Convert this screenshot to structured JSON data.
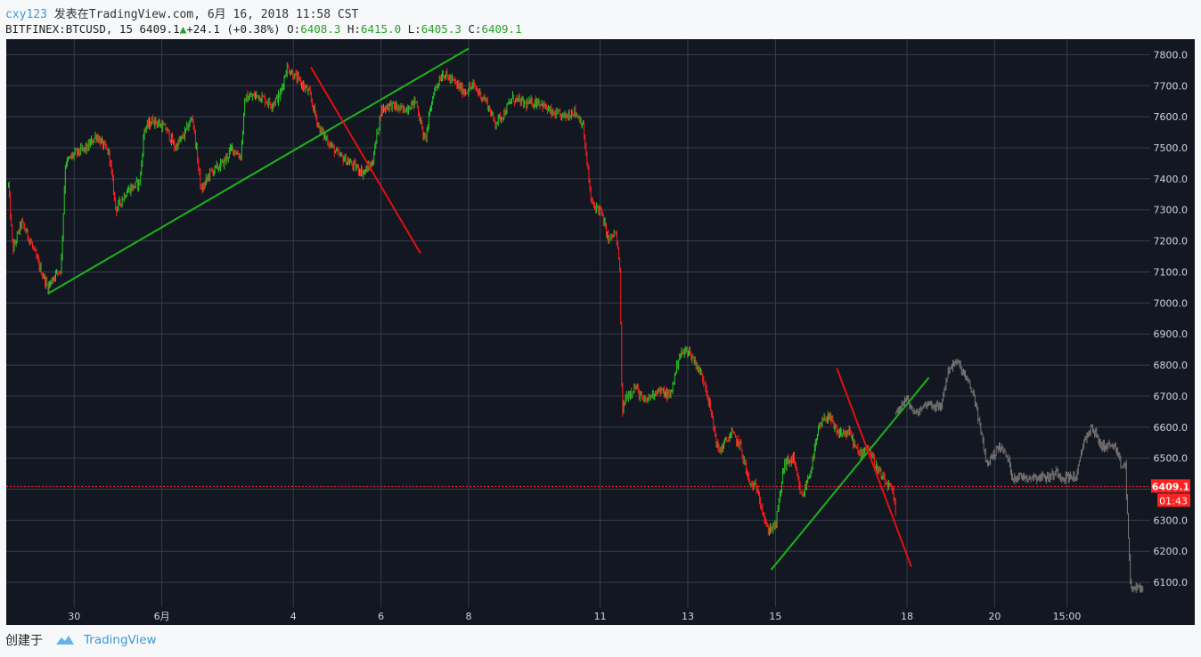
{
  "header": {
    "author": "cxy123",
    "published_on": "发表在TradingView.com, 6月 16, 2018 11:58 CST",
    "symbol": "BITFINEX:BTCUSD, 15",
    "last": "6409.1",
    "change": "+24.1",
    "change_pct": "(+0.38%)",
    "o_label": "O:",
    "o_value": "6408.3",
    "h_label": "H:",
    "h_value": "6415.0",
    "l_label": "L:",
    "l_value": "6405.3",
    "c_label": "C:",
    "c_value": "6409.1"
  },
  "footer": {
    "created_with": "创建于",
    "brand": "TradingView"
  },
  "colors": {
    "background": "#131722",
    "grid": "#363c4e",
    "up_candle": "#26c926",
    "down_candle": "#ff2020",
    "projection": "#8a8580",
    "trend_green": "#1db31d",
    "trend_red": "#e01010",
    "price_line": "#ff2020"
  },
  "chart_data": {
    "type": "candlestick",
    "y_ticks": [
      "7800.0",
      "7700.0",
      "7600.0",
      "7500.0",
      "7400.0",
      "7300.0",
      "7200.0",
      "7100.0",
      "7000.0",
      "6900.0",
      "6800.0",
      "6700.0",
      "6600.0",
      "6500.0",
      "6400.0",
      "6300.0",
      "6200.0",
      "6100.0"
    ],
    "x_ticks": [
      {
        "label": "30",
        "day": 0
      },
      {
        "label": "6月",
        "day": 2
      },
      {
        "label": "4",
        "day": 5
      },
      {
        "label": "6",
        "day": 7
      },
      {
        "label": "8",
        "day": 9
      },
      {
        "label": "11",
        "day": 12
      },
      {
        "label": "13",
        "day": 14
      },
      {
        "label": "15",
        "day": 16
      },
      {
        "label": "18",
        "day": 19
      },
      {
        "label": "20",
        "day": 21
      },
      {
        "label": "15:00",
        "day": 22.65
      }
    ],
    "ylim": [
      6020,
      7850
    ],
    "xlim": [
      -1.55,
      24.55
    ],
    "price_marker": "6409.1",
    "countdown": "01:43",
    "price_path": [
      [
        -1.5,
        7380
      ],
      [
        -1.4,
        7170
      ],
      [
        -1.2,
        7260
      ],
      [
        -1.0,
        7200
      ],
      [
        -0.8,
        7120
      ],
      [
        -0.6,
        7050
      ],
      [
        -0.45,
        7090
      ],
      [
        -0.3,
        7110
      ],
      [
        -0.2,
        7450
      ],
      [
        0.0,
        7480
      ],
      [
        0.3,
        7500
      ],
      [
        0.5,
        7540
      ],
      [
        0.8,
        7480
      ],
      [
        0.95,
        7300
      ],
      [
        1.2,
        7360
      ],
      [
        1.5,
        7390
      ],
      [
        1.6,
        7560
      ],
      [
        1.8,
        7590
      ],
      [
        2.1,
        7560
      ],
      [
        2.3,
        7500
      ],
      [
        2.5,
        7540
      ],
      [
        2.7,
        7600
      ],
      [
        2.9,
        7360
      ],
      [
        3.1,
        7420
      ],
      [
        3.4,
        7450
      ],
      [
        3.6,
        7500
      ],
      [
        3.8,
        7470
      ],
      [
        3.9,
        7660
      ],
      [
        4.2,
        7670
      ],
      [
        4.5,
        7640
      ],
      [
        4.7,
        7670
      ],
      [
        4.85,
        7760
      ],
      [
        5.1,
        7720
      ],
      [
        5.35,
        7680
      ],
      [
        5.6,
        7560
      ],
      [
        5.8,
        7520
      ],
      [
        6.0,
        7480
      ],
      [
        6.3,
        7450
      ],
      [
        6.6,
        7420
      ],
      [
        6.8,
        7450
      ],
      [
        7.0,
        7620
      ],
      [
        7.2,
        7640
      ],
      [
        7.5,
        7620
      ],
      [
        7.8,
        7650
      ],
      [
        8.0,
        7520
      ],
      [
        8.2,
        7680
      ],
      [
        8.4,
        7740
      ],
      [
        8.6,
        7720
      ],
      [
        8.9,
        7680
      ],
      [
        9.1,
        7700
      ],
      [
        9.4,
        7650
      ],
      [
        9.6,
        7580
      ],
      [
        9.8,
        7610
      ],
      [
        10.0,
        7660
      ],
      [
        10.3,
        7640
      ],
      [
        10.6,
        7650
      ],
      [
        10.9,
        7610
      ],
      [
        11.2,
        7600
      ],
      [
        11.4,
        7620
      ],
      [
        11.6,
        7580
      ],
      [
        11.8,
        7320
      ],
      [
        12.0,
        7300
      ],
      [
        12.2,
        7200
      ],
      [
        12.35,
        7230
      ],
      [
        12.45,
        7110
      ],
      [
        12.5,
        6650
      ],
      [
        12.6,
        6700
      ],
      [
        12.8,
        6730
      ],
      [
        13.0,
        6680
      ],
      [
        13.3,
        6720
      ],
      [
        13.6,
        6700
      ],
      [
        13.8,
        6830
      ],
      [
        14.0,
        6850
      ],
      [
        14.2,
        6800
      ],
      [
        14.4,
        6740
      ],
      [
        14.7,
        6520
      ],
      [
        15.0,
        6580
      ],
      [
        15.2,
        6540
      ],
      [
        15.4,
        6420
      ],
      [
        15.6,
        6400
      ],
      [
        15.8,
        6270
      ],
      [
        16.0,
        6280
      ],
      [
        16.2,
        6480
      ],
      [
        16.4,
        6500
      ],
      [
        16.6,
        6370
      ],
      [
        16.8,
        6460
      ],
      [
        17.0,
        6600
      ],
      [
        17.2,
        6640
      ],
      [
        17.4,
        6580
      ],
      [
        17.7,
        6580
      ],
      [
        17.9,
        6510
      ],
      [
        18.1,
        6540
      ],
      [
        18.3,
        6470
      ],
      [
        18.5,
        6420
      ],
      [
        18.65,
        6400
      ],
      [
        18.75,
        6320
      ]
    ],
    "projection_segments": [
      {
        "from_day": 18.75,
        "to_day": 24.4,
        "shape": "projected copy of earlier price action",
        "ends_at": 6060
      }
    ],
    "trend_lines": [
      {
        "color": "green",
        "from": [
          -0.6,
          7030
        ],
        "to": [
          9.0,
          7820
        ]
      },
      {
        "color": "red",
        "from": [
          5.4,
          7760
        ],
        "to": [
          7.9,
          7160
        ]
      },
      {
        "color": "green",
        "from": [
          15.9,
          6140
        ],
        "to": [
          19.5,
          6760
        ]
      },
      {
        "color": "red",
        "from": [
          17.4,
          6790
        ],
        "to": [
          19.1,
          6150
        ]
      }
    ]
  }
}
